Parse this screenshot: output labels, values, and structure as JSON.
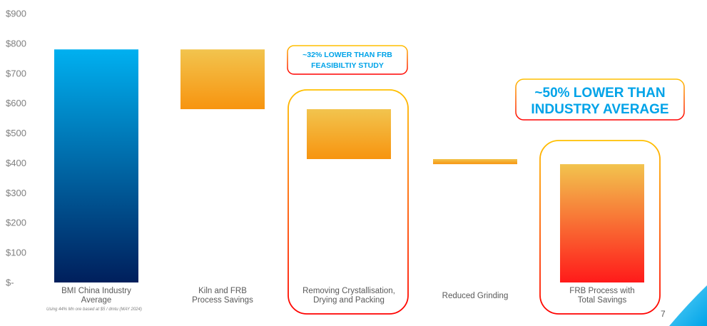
{
  "chart_data": {
    "type": "bar",
    "subtype": "waterfall",
    "categories": [
      [
        "BMI China Industry",
        "Average"
      ],
      [
        "Kiln and FRB",
        "Process Savings"
      ],
      [
        "Removing Crystallisation,",
        "Drying and Packing"
      ],
      [
        "Reduced Grinding"
      ],
      [
        "FRB Process with",
        "Total Savings"
      ]
    ],
    "bars": [
      {
        "start": 0,
        "end": 780
      },
      {
        "start": 580,
        "end": 780
      },
      {
        "start": 413,
        "end": 580
      },
      {
        "start": 396,
        "end": 413
      },
      {
        "start": 0,
        "end": 396
      }
    ],
    "ylim": [
      0,
      900
    ],
    "y_ticks": [
      0,
      100,
      200,
      300,
      400,
      500,
      600,
      700,
      800,
      900
    ],
    "y_tick_labels": [
      "$-",
      "$100",
      "$200",
      "$300",
      "$400",
      "$500",
      "$600",
      "$700",
      "$800",
      "$900"
    ],
    "grid": false,
    "colors": {
      "industry_top": "#00b0f0",
      "industry_bottom": "#001f5c",
      "savings_top": "#f2c44e",
      "savings_bottom": "#f7940f",
      "total_top": "#f2c44e",
      "total_bottom": "#ff1a1a",
      "callout_text": "#00a3e8",
      "callout_border_top": "#ffc000",
      "callout_border_bottom": "#ff0000"
    }
  },
  "annotations": {
    "callout_small": [
      "~32% LOWER THAN FRB",
      "FEASIBILTIY STUDY"
    ],
    "callout_big": [
      "~50% LOWER THAN",
      "INDUSTRY AVERAGE"
    ]
  },
  "footnote": "Using 44% Mn ore based at $5 / dmtu (MAY 2024)",
  "page_number": "7"
}
